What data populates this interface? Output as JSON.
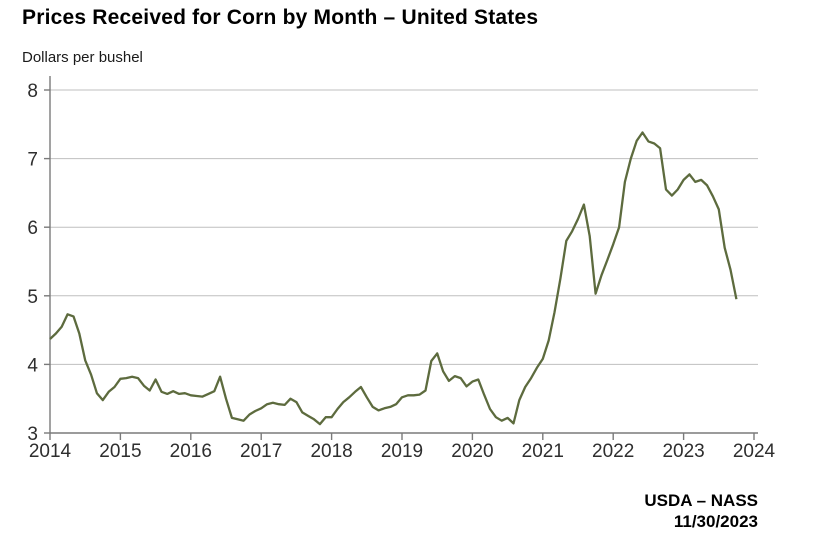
{
  "header": {
    "title": "Prices Received for Corn by Month – United States",
    "units_label": "Dollars per bushel"
  },
  "footer": {
    "source": "USDA – NASS",
    "date": "11/30/2023"
  },
  "chart_data": {
    "type": "line",
    "title": "Prices Received for Corn by Month – United States",
    "ylabel": "Dollars per bushel",
    "xlabel": "",
    "frequency": "monthly",
    "x_start": {
      "year": 2014,
      "month": 1
    },
    "x_end": {
      "year": 2023,
      "month": 10
    },
    "xlim": [
      2014,
      2024.12
    ],
    "ylim": [
      3,
      8
    ],
    "y_ticks": [
      3,
      4,
      5,
      6,
      7,
      8
    ],
    "x_tick_labels": [
      "2014",
      "2015",
      "2016",
      "2017",
      "2018",
      "2019",
      "2020",
      "2021",
      "2022",
      "2023",
      "2024"
    ],
    "grid": "horizontal",
    "legend": "none",
    "line_color": "#5d6b3e",
    "grid_color": "#bfbfbf",
    "axis_color": "#7a7a7a",
    "tick_label_color": "#2e2e2e",
    "series": [
      {
        "name": "Price received for corn, dollars per bushel",
        "monthly_values": [
          4.37,
          4.45,
          4.55,
          4.73,
          4.7,
          4.45,
          4.06,
          3.85,
          3.58,
          3.48,
          3.6,
          3.67,
          3.79,
          3.8,
          3.82,
          3.8,
          3.69,
          3.62,
          3.78,
          3.6,
          3.57,
          3.61,
          3.57,
          3.58,
          3.55,
          3.54,
          3.53,
          3.57,
          3.61,
          3.82,
          3.5,
          3.22,
          3.2,
          3.18,
          3.27,
          3.32,
          3.36,
          3.42,
          3.44,
          3.42,
          3.41,
          3.5,
          3.45,
          3.3,
          3.25,
          3.2,
          3.13,
          3.23,
          3.23,
          3.35,
          3.45,
          3.52,
          3.6,
          3.67,
          3.52,
          3.38,
          3.33,
          3.36,
          3.38,
          3.42,
          3.52,
          3.55,
          3.55,
          3.56,
          3.62,
          4.05,
          4.16,
          3.9,
          3.76,
          3.83,
          3.8,
          3.68,
          3.75,
          3.78,
          3.56,
          3.35,
          3.23,
          3.18,
          3.22,
          3.14,
          3.48,
          3.67,
          3.8,
          3.95,
          4.08,
          4.35,
          4.76,
          5.25,
          5.8,
          5.94,
          6.12,
          6.33,
          5.87,
          5.03,
          5.3,
          5.52,
          5.75,
          6.0,
          6.66,
          7.0,
          7.26,
          7.38,
          7.25,
          7.22,
          7.15,
          6.55,
          6.46,
          6.55,
          6.69,
          6.77,
          6.66,
          6.69,
          6.61,
          6.45,
          6.26,
          5.7,
          5.38,
          4.95
        ]
      }
    ]
  }
}
